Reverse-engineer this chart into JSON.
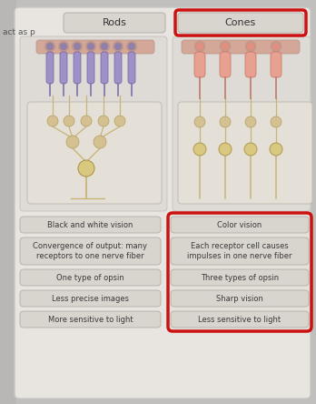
{
  "background_color": "#c0bfbe",
  "panel_bg": "#e8e5e1",
  "panel_inner_bg": "#dedad5",
  "rods_label": "Rods",
  "cones_label": "Cones",
  "red_border_color": "#cc1111",
  "rods_items": [
    "Black and white vision",
    "Convergence of output: many\nreceptors to one nerve fiber",
    "One type of opsin",
    "Less precise images",
    "More sensitive to light"
  ],
  "cones_items": [
    "Color vision",
    "Each receptor cell causes\nimpulses in one nerve fiber",
    "Three types of opsin",
    "Sharp vision",
    "Less sensitive to light"
  ],
  "rod_color": "#a090c8",
  "cone_color": "#e8a090",
  "top_bar_color": "#d4a898",
  "neuron_color": "#d4c090",
  "axon_color": "#c8b478",
  "label_box_color": "#d8d4ce",
  "label_text_color": "#3a3a3a",
  "header_box_color": "#d8d4ce",
  "left_edge_bg": "#b8b7b5",
  "figsize": [
    3.48,
    4.44
  ],
  "dpi": 100
}
